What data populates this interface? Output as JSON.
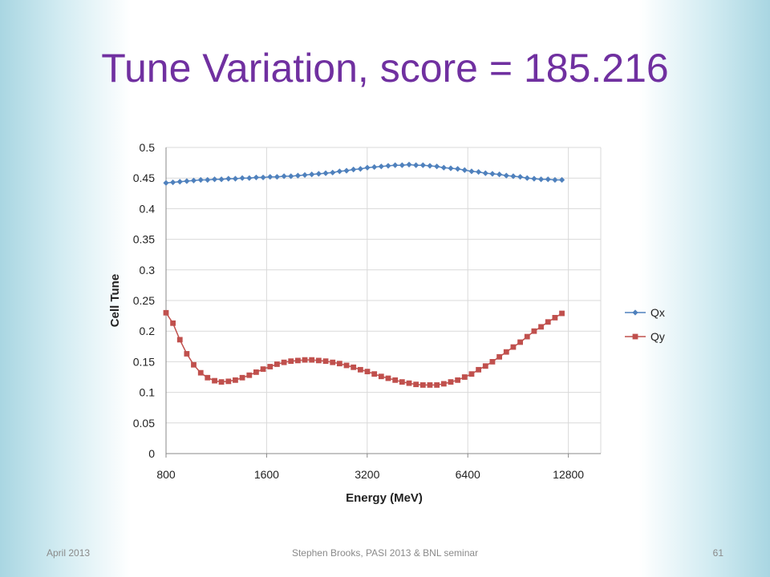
{
  "slide": {
    "title": "Tune Variation, score = 185.216",
    "footer_left": "April 2013",
    "footer_center": "Stephen Brooks, PASI 2013 & BNL seminar",
    "footer_right": "61"
  },
  "chart_data": {
    "type": "line",
    "xlabel": "Energy (MeV)",
    "ylabel": "Cell Tune",
    "xscale": "log2",
    "xlim": [
      800,
      16000
    ],
    "xticks": [
      800,
      1600,
      3200,
      6400,
      12800
    ],
    "xtick_labels": [
      "800",
      "1600",
      "3200",
      "6400",
      "12800"
    ],
    "ylim": [
      0,
      0.5
    ],
    "yticks": [
      0,
      0.05,
      0.1,
      0.15,
      0.2,
      0.25,
      0.3,
      0.35,
      0.4,
      0.45,
      0.5
    ],
    "ytick_labels": [
      "0",
      "0.05",
      "0.1",
      "0.15",
      "0.2",
      "0.25",
      "0.3",
      "0.35",
      "0.4",
      "0.45",
      "0.5"
    ],
    "grid": true,
    "legend": "right",
    "series": [
      {
        "name": "Qx",
        "color": "#4f81bd",
        "marker": "diamond",
        "x": [
          800,
          839,
          880,
          923,
          968,
          1016,
          1065,
          1118,
          1172,
          1230,
          1290,
          1353,
          1420,
          1489,
          1562,
          1639,
          1719,
          1804,
          1892,
          1985,
          2082,
          2184,
          2291,
          2404,
          2522,
          2645,
          2775,
          2911,
          3054,
          3203,
          3361,
          3525,
          3698,
          3880,
          4070,
          4270,
          4479,
          4699,
          4929,
          5171,
          5425,
          5691,
          5970,
          6262,
          6570,
          6892,
          7230,
          7584,
          7956,
          8347,
          8756,
          9185,
          9636,
          10108,
          10604,
          11124,
          11670,
          12242
        ],
        "y": [
          0.442,
          0.443,
          0.444,
          0.445,
          0.446,
          0.447,
          0.447,
          0.448,
          0.448,
          0.449,
          0.449,
          0.45,
          0.45,
          0.451,
          0.451,
          0.452,
          0.452,
          0.453,
          0.453,
          0.454,
          0.455,
          0.456,
          0.457,
          0.458,
          0.459,
          0.461,
          0.462,
          0.464,
          0.465,
          0.467,
          0.468,
          0.469,
          0.47,
          0.471,
          0.471,
          0.472,
          0.471,
          0.471,
          0.47,
          0.469,
          0.467,
          0.466,
          0.465,
          0.463,
          0.461,
          0.46,
          0.458,
          0.457,
          0.456,
          0.454,
          0.453,
          0.452,
          0.45,
          0.449,
          0.448,
          0.448,
          0.447,
          0.447
        ]
      },
      {
        "name": "Qy",
        "color": "#c0504d",
        "marker": "square",
        "x": [
          800,
          839,
          880,
          923,
          968,
          1016,
          1065,
          1118,
          1172,
          1230,
          1290,
          1353,
          1420,
          1489,
          1562,
          1639,
          1719,
          1804,
          1892,
          1985,
          2082,
          2184,
          2291,
          2404,
          2522,
          2645,
          2775,
          2911,
          3054,
          3203,
          3361,
          3525,
          3698,
          3880,
          4070,
          4270,
          4479,
          4699,
          4929,
          5171,
          5425,
          5691,
          5970,
          6262,
          6570,
          6892,
          7230,
          7584,
          7956,
          8347,
          8756,
          9185,
          9636,
          10108,
          10604,
          11124,
          11670,
          12242
        ],
        "y": [
          0.23,
          0.213,
          0.186,
          0.163,
          0.145,
          0.132,
          0.124,
          0.119,
          0.117,
          0.118,
          0.12,
          0.124,
          0.128,
          0.133,
          0.138,
          0.142,
          0.146,
          0.149,
          0.151,
          0.152,
          0.153,
          0.153,
          0.152,
          0.151,
          0.149,
          0.147,
          0.144,
          0.141,
          0.137,
          0.134,
          0.13,
          0.126,
          0.123,
          0.12,
          0.117,
          0.115,
          0.113,
          0.112,
          0.112,
          0.112,
          0.114,
          0.117,
          0.12,
          0.125,
          0.13,
          0.137,
          0.143,
          0.15,
          0.158,
          0.166,
          0.174,
          0.182,
          0.191,
          0.2,
          0.207,
          0.215,
          0.222,
          0.229
        ]
      }
    ]
  }
}
